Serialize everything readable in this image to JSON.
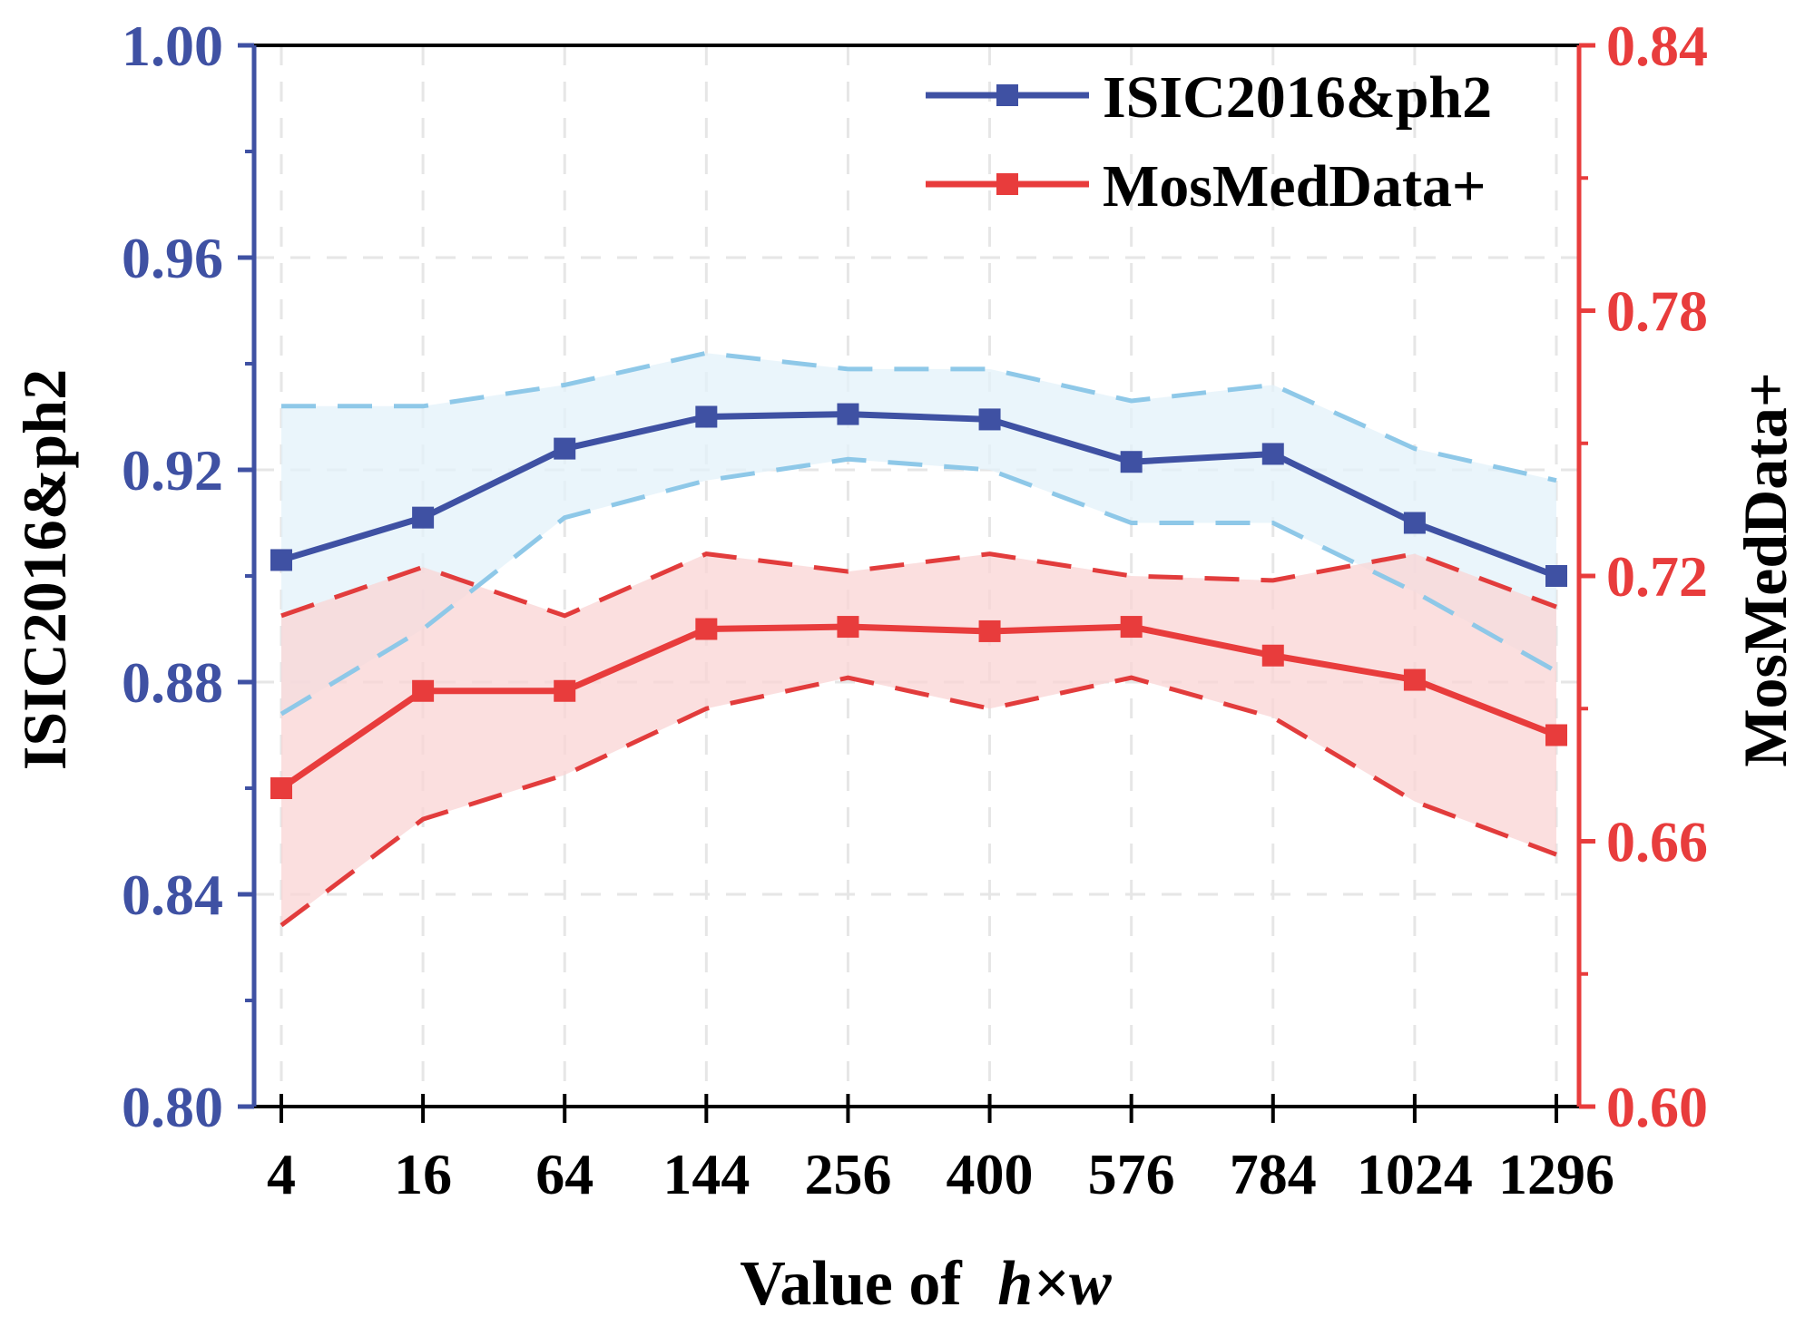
{
  "chart_data": {
    "type": "line",
    "x_label_prefix": "Value of",
    "x_label_var": "h×w",
    "categories": [
      "4",
      "16",
      "64",
      "144",
      "256",
      "400",
      "576",
      "784",
      "1024",
      "1296"
    ],
    "left_axis": {
      "label": "ISIC2016&ph2",
      "range": [
        0.8,
        1.0
      ],
      "ticks": [
        "0.80",
        "0.84",
        "0.88",
        "0.92",
        "0.96",
        "1.00"
      ],
      "color": "#3f51a3"
    },
    "right_axis": {
      "label": "MosMedData+",
      "range": [
        0.6,
        0.84
      ],
      "ticks": [
        "0.60",
        "0.66",
        "0.72",
        "0.78",
        "0.84"
      ],
      "color": "#e83c3c"
    },
    "series": [
      {
        "name": "ISIC2016&ph2",
        "axis": "left",
        "color": "#3f51a3",
        "band_color": "#e3f1fa",
        "dash_color": "#8ec8e8",
        "values": [
          0.903,
          0.911,
          0.924,
          0.93,
          0.9305,
          0.9295,
          0.9215,
          0.923,
          0.91,
          0.9
        ],
        "upper": [
          0.932,
          0.932,
          0.936,
          0.942,
          0.939,
          0.939,
          0.933,
          0.936,
          0.924,
          0.918
        ],
        "lower": [
          0.874,
          0.89,
          0.911,
          0.918,
          0.922,
          0.92,
          0.91,
          0.91,
          0.897,
          0.882
        ]
      },
      {
        "name": "MosMedData+",
        "axis": "right",
        "color": "#e83c3c",
        "band_color": "#f9d4d4",
        "dash_color": "#e23c3c",
        "values": [
          0.672,
          0.694,
          0.694,
          0.708,
          0.7085,
          0.7075,
          0.7085,
          0.702,
          0.6965,
          0.684
        ],
        "upper": [
          0.711,
          0.722,
          0.711,
          0.725,
          0.721,
          0.725,
          0.72,
          0.719,
          0.725,
          0.713
        ],
        "lower": [
          0.641,
          0.665,
          0.675,
          0.69,
          0.697,
          0.69,
          0.697,
          0.688,
          0.669,
          0.657
        ]
      }
    ],
    "legend_position": "top-right"
  }
}
